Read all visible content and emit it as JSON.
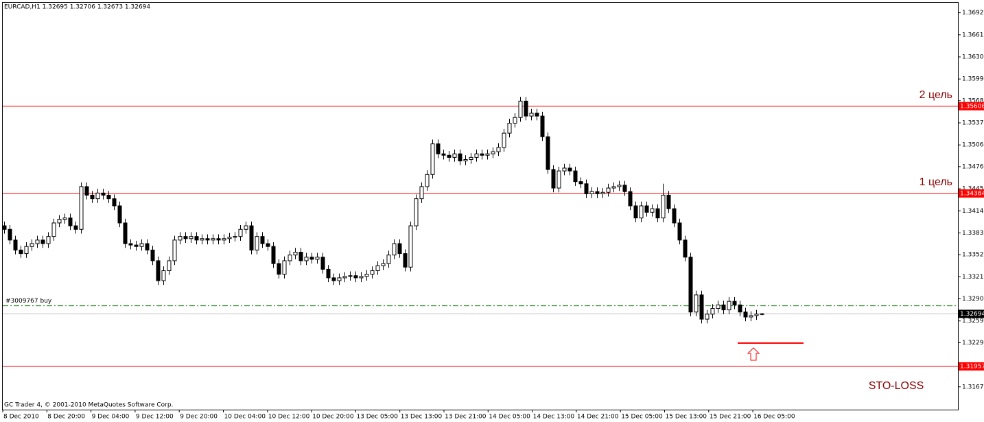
{
  "chart_data": {
    "type": "candlestick",
    "title": "EURCAD,H1 1.32695 1.32706 1.32673 1.32694",
    "footer": "GC Trader 4, © 2001-2010 MetaQuotes Software Corp.",
    "up_color": "#ffffff",
    "down_color": "#000000",
    "ylim": [
      1.3135,
      1.3707
    ],
    "yticks": [
      {
        "value": 1.3692,
        "label": "1.36920"
      },
      {
        "value": 1.3661,
        "label": "1.36610"
      },
      {
        "value": 1.363,
        "label": "1.36300"
      },
      {
        "value": 1.3599,
        "label": "1.35990"
      },
      1.35685,
      1.35375,
      1.35065,
      {
        "value": 1.3476,
        "label": "1.34760"
      },
      {
        "value": 1.3445,
        "label": "1.34450"
      },
      {
        "value": 1.3414,
        "label": "1.34140"
      },
      {
        "value": 1.3383,
        "label": "1.33830"
      },
      1.33525,
      1.33215,
      1.32905,
      1.32595,
      {
        "value": 1.3229,
        "label": "1.32290"
      },
      {
        "value": 1.3167,
        "label": "1.31670"
      }
    ],
    "xticks": [
      "8 Dec 2010",
      "8 Dec 20:00",
      "9 Dec 04:00",
      "9 Dec 12:00",
      "9 Dec 20:00",
      "10 Dec 04:00",
      "10 Dec 12:00",
      "10 Dec 20:00",
      "13 Dec 05:00",
      "13 Dec 13:00",
      "13 Dec 21:00",
      "14 Dec 05:00",
      "14 Dec 13:00",
      "14 Dec 21:00",
      "15 Dec 05:00",
      "15 Dec 13:00",
      "15 Dec 21:00",
      "16 Dec 05:00"
    ],
    "levels": [
      {
        "value": 1.35608,
        "label": "2 цель",
        "color": "#ff0000"
      },
      {
        "value": 1.34384,
        "label": "1 цель",
        "color": "#ff0000"
      },
      {
        "value": 1.31957,
        "label": "STO-LOSS",
        "color": "#ff0000"
      }
    ],
    "order": {
      "value": 1.32808,
      "label": "#3009767 buy",
      "color": "#008000"
    },
    "bid": 1.32694,
    "candles": [
      [
        1.3393,
        1.3399,
        1.3382,
        1.3388
      ],
      [
        1.3388,
        1.3394,
        1.3367,
        1.3373
      ],
      [
        1.3373,
        1.3379,
        1.3353,
        1.3359
      ],
      [
        1.3359,
        1.3365,
        1.3348,
        1.3354
      ],
      [
        1.3354,
        1.337,
        1.3348,
        1.3364
      ],
      [
        1.3364,
        1.3374,
        1.3358,
        1.3368
      ],
      [
        1.3368,
        1.3379,
        1.3362,
        1.3373
      ],
      [
        1.3373,
        1.3379,
        1.3362,
        1.3368
      ],
      [
        1.3368,
        1.3384,
        1.3362,
        1.3378
      ],
      [
        1.3378,
        1.3403,
        1.3372,
        1.3397
      ],
      [
        1.3397,
        1.3408,
        1.3391,
        1.3402
      ],
      [
        1.3402,
        1.341,
        1.3396,
        1.3404
      ],
      [
        1.3404,
        1.341,
        1.3387,
        1.3393
      ],
      [
        1.3393,
        1.3399,
        1.3382,
        1.3388
      ],
      [
        1.3388,
        1.3454,
        1.3382,
        1.3448
      ],
      [
        1.3448,
        1.3454,
        1.343,
        1.3436
      ],
      [
        1.3436,
        1.3442,
        1.3425,
        1.3431
      ],
      [
        1.3431,
        1.3445,
        1.3425,
        1.3439
      ],
      [
        1.3439,
        1.3445,
        1.343,
        1.3436
      ],
      [
        1.3436,
        1.3442,
        1.3425,
        1.3431
      ],
      [
        1.3431,
        1.3437,
        1.3415,
        1.3421
      ],
      [
        1.3421,
        1.3427,
        1.3391,
        1.3397
      ],
      [
        1.3397,
        1.3403,
        1.3362,
        1.3368
      ],
      [
        1.3368,
        1.3374,
        1.336,
        1.3366
      ],
      [
        1.3366,
        1.3372,
        1.3358,
        1.3364
      ],
      [
        1.3364,
        1.3374,
        1.3358,
        1.3368
      ],
      [
        1.3368,
        1.3374,
        1.3353,
        1.3359
      ],
      [
        1.3359,
        1.3365,
        1.3338,
        1.3344
      ],
      [
        1.3344,
        1.335,
        1.331,
        1.3316
      ],
      [
        1.3316,
        1.3336,
        1.331,
        1.333
      ],
      [
        1.333,
        1.335,
        1.3324,
        1.3344
      ],
      [
        1.3344,
        1.3379,
        1.3338,
        1.3373
      ],
      [
        1.3373,
        1.3384,
        1.3367,
        1.3378
      ],
      [
        1.3378,
        1.3384,
        1.3369,
        1.3375
      ],
      [
        1.3375,
        1.3384,
        1.3369,
        1.3378
      ],
      [
        1.3378,
        1.3384,
        1.3367,
        1.3373
      ],
      [
        1.3373,
        1.3381,
        1.3367,
        1.3375
      ],
      [
        1.3375,
        1.3381,
        1.3367,
        1.3373
      ],
      [
        1.3373,
        1.3381,
        1.3367,
        1.3375
      ],
      [
        1.3375,
        1.3381,
        1.3367,
        1.3373
      ],
      [
        1.3373,
        1.3381,
        1.3367,
        1.3375
      ],
      [
        1.3375,
        1.3383,
        1.3369,
        1.3377
      ],
      [
        1.3377,
        1.3384,
        1.3371,
        1.3378
      ],
      [
        1.3378,
        1.3394,
        1.3372,
        1.3388
      ],
      [
        1.3388,
        1.3399,
        1.3382,
        1.3393
      ],
      [
        1.3393,
        1.3399,
        1.3353,
        1.3359
      ],
      [
        1.3359,
        1.3384,
        1.3353,
        1.3378
      ],
      [
        1.3378,
        1.3384,
        1.3362,
        1.3368
      ],
      [
        1.3368,
        1.3374,
        1.3358,
        1.3364
      ],
      [
        1.3364,
        1.337,
        1.3334,
        1.334
      ],
      [
        1.334,
        1.3346,
        1.3319,
        1.3325
      ],
      [
        1.3325,
        1.335,
        1.3319,
        1.3344
      ],
      [
        1.3344,
        1.3358,
        1.3338,
        1.3352
      ],
      [
        1.3352,
        1.3362,
        1.3346,
        1.3356
      ],
      [
        1.3356,
        1.3362,
        1.3338,
        1.3344
      ],
      [
        1.3344,
        1.3355,
        1.3338,
        1.3349
      ],
      [
        1.3349,
        1.3355,
        1.334,
        1.3346
      ],
      [
        1.3346,
        1.3355,
        1.334,
        1.3349
      ],
      [
        1.3349,
        1.3355,
        1.3326,
        1.3332
      ],
      [
        1.3332,
        1.3338,
        1.3314,
        1.332
      ],
      [
        1.332,
        1.3326,
        1.331,
        1.3316
      ],
      [
        1.3316,
        1.3326,
        1.331,
        1.332
      ],
      [
        1.332,
        1.3328,
        1.3314,
        1.3322
      ],
      [
        1.3322,
        1.3329,
        1.3316,
        1.3323
      ],
      [
        1.3323,
        1.3329,
        1.3314,
        1.332
      ],
      [
        1.332,
        1.3328,
        1.3314,
        1.3322
      ],
      [
        1.3322,
        1.3331,
        1.3316,
        1.3325
      ],
      [
        1.3325,
        1.3336,
        1.3319,
        1.333
      ],
      [
        1.333,
        1.3343,
        1.3324,
        1.3337
      ],
      [
        1.3337,
        1.3346,
        1.3331,
        1.334
      ],
      [
        1.334,
        1.3358,
        1.3334,
        1.3352
      ],
      [
        1.3352,
        1.3374,
        1.3346,
        1.3368
      ],
      [
        1.3368,
        1.3374,
        1.3348,
        1.3354
      ],
      [
        1.3354,
        1.336,
        1.3329,
        1.3335
      ],
      [
        1.3335,
        1.3399,
        1.3329,
        1.3393
      ],
      [
        1.3393,
        1.3437,
        1.3387,
        1.3431
      ],
      [
        1.3431,
        1.3454,
        1.3425,
        1.3448
      ],
      [
        1.3448,
        1.3471,
        1.3442,
        1.3465
      ],
      [
        1.3465,
        1.3514,
        1.3459,
        1.3508
      ],
      [
        1.3508,
        1.3514,
        1.3488,
        1.3494
      ],
      [
        1.3494,
        1.35,
        1.3486,
        1.3492
      ],
      [
        1.3492,
        1.3498,
        1.3483,
        1.3489
      ],
      [
        1.3489,
        1.35,
        1.3483,
        1.3494
      ],
      [
        1.3494,
        1.35,
        1.3478,
        1.3484
      ],
      [
        1.3484,
        1.3492,
        1.3478,
        1.3486
      ],
      [
        1.3486,
        1.3495,
        1.348,
        1.3489
      ],
      [
        1.3489,
        1.35,
        1.3483,
        1.3494
      ],
      [
        1.3494,
        1.35,
        1.3486,
        1.3492
      ],
      [
        1.3492,
        1.35,
        1.3486,
        1.3494
      ],
      [
        1.3494,
        1.3503,
        1.3488,
        1.3497
      ],
      [
        1.3497,
        1.3509,
        1.3491,
        1.3503
      ],
      [
        1.3503,
        1.3529,
        1.3497,
        1.3523
      ],
      [
        1.3523,
        1.3543,
        1.3517,
        1.3537
      ],
      [
        1.3537,
        1.3551,
        1.3531,
        1.3545
      ],
      [
        1.3545,
        1.3574,
        1.3539,
        1.3568
      ],
      [
        1.3568,
        1.3574,
        1.3541,
        1.3547
      ],
      [
        1.3547,
        1.3557,
        1.3541,
        1.3551
      ],
      [
        1.3551,
        1.3557,
        1.3541,
        1.3547
      ],
      [
        1.3547,
        1.3553,
        1.3512,
        1.3518
      ],
      [
        1.3518,
        1.3524,
        1.3466,
        1.3472
      ],
      [
        1.3472,
        1.3478,
        1.344,
        1.3446
      ],
      [
        1.3446,
        1.3476,
        1.344,
        1.347
      ],
      [
        1.347,
        1.348,
        1.3464,
        1.3474
      ],
      [
        1.3474,
        1.348,
        1.3464,
        1.347
      ],
      [
        1.347,
        1.3476,
        1.3449,
        1.3455
      ],
      [
        1.3455,
        1.3461,
        1.3446,
        1.3452
      ],
      [
        1.3452,
        1.3458,
        1.3432,
        1.3438
      ],
      [
        1.3438,
        1.3447,
        1.3432,
        1.3441
      ],
      [
        1.3441,
        1.3447,
        1.3432,
        1.3438
      ],
      [
        1.3438,
        1.3446,
        1.3432,
        1.344
      ],
      [
        1.344,
        1.3452,
        1.3434,
        1.3446
      ],
      [
        1.3446,
        1.3454,
        1.344,
        1.3448
      ],
      [
        1.3448,
        1.3456,
        1.3442,
        1.345
      ],
      [
        1.345,
        1.3456,
        1.3435,
        1.3441
      ],
      [
        1.3441,
        1.3447,
        1.3415,
        1.3421
      ],
      [
        1.3421,
        1.3427,
        1.3398,
        1.3404
      ],
      [
        1.3404,
        1.3427,
        1.3398,
        1.3421
      ],
      [
        1.3421,
        1.3427,
        1.3406,
        1.3412
      ],
      [
        1.3412,
        1.3423,
        1.3406,
        1.3417
      ],
      [
        1.3417,
        1.3423,
        1.3398,
        1.3404
      ],
      [
        1.3404,
        1.3452,
        1.3398,
        1.3436
      ],
      [
        1.3436,
        1.3442,
        1.3411,
        1.3417
      ],
      [
        1.3417,
        1.3423,
        1.3391,
        1.3397
      ],
      [
        1.3397,
        1.3403,
        1.3367,
        1.3373
      ],
      [
        1.3373,
        1.3379,
        1.3343,
        1.3349
      ],
      [
        1.3349,
        1.3355,
        1.3266,
        1.3272
      ],
      [
        1.3272,
        1.3302,
        1.3266,
        1.3296
      ],
      [
        1.3296,
        1.3302,
        1.3256,
        1.3262
      ],
      [
        1.3262,
        1.3275,
        1.3256,
        1.3269
      ],
      [
        1.3269,
        1.3283,
        1.3263,
        1.3277
      ],
      [
        1.3277,
        1.3288,
        1.3271,
        1.3282
      ],
      [
        1.3282,
        1.3288,
        1.3269,
        1.3275
      ],
      [
        1.3275,
        1.3293,
        1.3269,
        1.3287
      ],
      [
        1.3287,
        1.3293,
        1.3276,
        1.3282
      ],
      [
        1.3282,
        1.3288,
        1.3266,
        1.3272
      ],
      [
        1.3272,
        1.3278,
        1.3259,
        1.3265
      ],
      [
        1.3265,
        1.3273,
        1.3259,
        1.3267
      ],
      [
        1.3267,
        1.3275,
        1.3261,
        1.3269
      ],
      [
        1.32695,
        1.32706,
        1.32673,
        1.32694
      ]
    ]
  }
}
